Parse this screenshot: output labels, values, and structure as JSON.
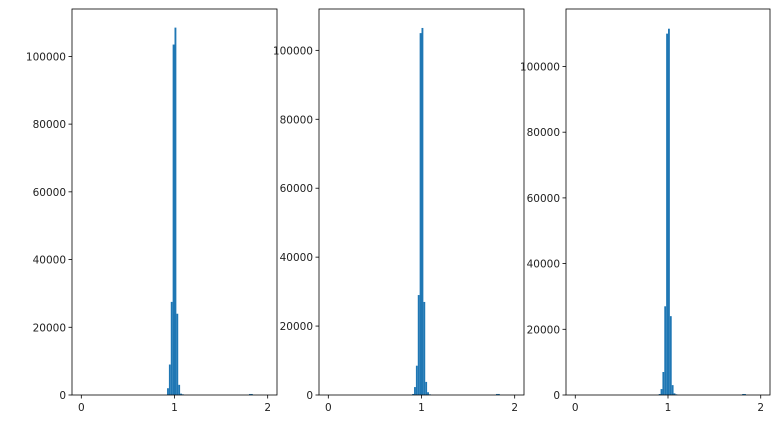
{
  "chart_data": [
    {
      "type": "bar",
      "subtype": "histogram",
      "bin_width": 0.02,
      "xlim": [
        -0.1,
        2.1
      ],
      "ylim": [
        0,
        114000
      ],
      "xticks": [
        0,
        1,
        2
      ],
      "yticks": [
        0,
        20000,
        40000,
        60000,
        80000,
        100000
      ],
      "grid": false,
      "color": "#1f77b4",
      "bins": [
        {
          "x": 0.92,
          "count": 2000
        },
        {
          "x": 0.94,
          "count": 9000
        },
        {
          "x": 0.96,
          "count": 27500
        },
        {
          "x": 0.98,
          "count": 103500
        },
        {
          "x": 1.0,
          "count": 108500
        },
        {
          "x": 1.02,
          "count": 24000
        },
        {
          "x": 1.04,
          "count": 3000
        },
        {
          "x": 1.06,
          "count": 400
        },
        {
          "x": 1.08,
          "count": 200
        },
        {
          "x": 1.8,
          "count": 300
        },
        {
          "x": 1.82,
          "count": 300
        }
      ]
    },
    {
      "type": "bar",
      "subtype": "histogram",
      "bin_width": 0.02,
      "xlim": [
        -0.1,
        2.1
      ],
      "ylim": [
        0,
        112000
      ],
      "xticks": [
        0,
        1,
        2
      ],
      "yticks": [
        0,
        20000,
        40000,
        60000,
        80000,
        100000
      ],
      "grid": false,
      "color": "#1f77b4",
      "bins": [
        {
          "x": 0.9,
          "count": 300
        },
        {
          "x": 0.92,
          "count": 2300
        },
        {
          "x": 0.94,
          "count": 8500
        },
        {
          "x": 0.96,
          "count": 29000
        },
        {
          "x": 0.98,
          "count": 105000
        },
        {
          "x": 1.0,
          "count": 106500
        },
        {
          "x": 1.02,
          "count": 27000
        },
        {
          "x": 1.04,
          "count": 3800
        },
        {
          "x": 1.06,
          "count": 800
        },
        {
          "x": 1.08,
          "count": 200
        },
        {
          "x": 1.8,
          "count": 300
        },
        {
          "x": 1.82,
          "count": 300
        }
      ]
    },
    {
      "type": "bar",
      "subtype": "histogram",
      "bin_width": 0.02,
      "xlim": [
        -0.1,
        2.1
      ],
      "ylim": [
        0,
        117500
      ],
      "xticks": [
        0,
        1,
        2
      ],
      "yticks": [
        0,
        20000,
        40000,
        60000,
        80000,
        100000
      ],
      "grid": false,
      "color": "#1f77b4",
      "bins": [
        {
          "x": 0.9,
          "count": 300
        },
        {
          "x": 0.92,
          "count": 1800
        },
        {
          "x": 0.94,
          "count": 7000
        },
        {
          "x": 0.96,
          "count": 27000
        },
        {
          "x": 0.98,
          "count": 110000
        },
        {
          "x": 1.0,
          "count": 111500
        },
        {
          "x": 1.02,
          "count": 24000
        },
        {
          "x": 1.04,
          "count": 3000
        },
        {
          "x": 1.06,
          "count": 500
        },
        {
          "x": 1.08,
          "count": 200
        },
        {
          "x": 1.8,
          "count": 300
        },
        {
          "x": 1.82,
          "count": 300
        }
      ]
    }
  ]
}
